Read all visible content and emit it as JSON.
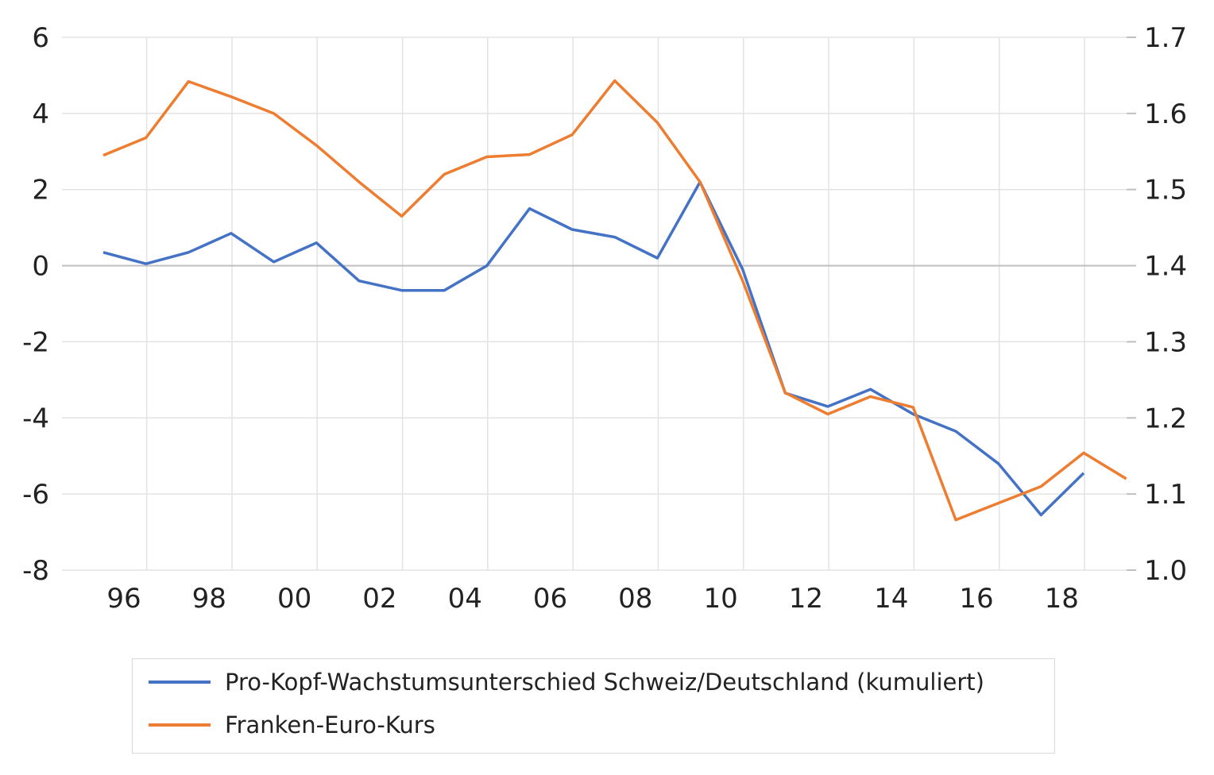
{
  "chart_data": {
    "type": "line",
    "title": "",
    "xlabel": "",
    "ylabel": "",
    "x_tick_labels": [
      "96",
      "98",
      "00",
      "02",
      "04",
      "06",
      "08",
      "10",
      "12",
      "14",
      "16",
      "18"
    ],
    "left_axis": {
      "ylim": [
        -8,
        6
      ],
      "ticks": [
        "6",
        "4",
        "2",
        "0",
        "-2",
        "-4",
        "-6",
        "-8"
      ]
    },
    "right_axis": {
      "ylim": [
        1.0,
        1.7
      ],
      "ticks": [
        "1.7",
        "1.6",
        "1.5",
        "1.4",
        "1.3",
        "1.2",
        "1.1",
        "1.0"
      ]
    },
    "grid": true,
    "legend_position": "bottom",
    "series": [
      {
        "name": "Pro-Kopf-Wachstumsunterschied Schweiz/Deutschland (kumuliert)",
        "axis": "left",
        "color": "#4472C4",
        "x": [
          1995.5,
          1996.5,
          1997.5,
          1998.5,
          1999.5,
          2000.5,
          2001.5,
          2002.5,
          2003.5,
          2004.5,
          2005.5,
          2006.5,
          2007.5,
          2008.5,
          2009.5,
          2010.5,
          2011.5,
          2012.5,
          2013.5,
          2014.5,
          2015.5,
          2016.5,
          2017.5,
          2018.5
        ],
        "values": [
          0.35,
          0.05,
          0.35,
          0.85,
          0.1,
          0.6,
          -0.4,
          -0.65,
          -0.65,
          0.0,
          1.5,
          0.95,
          0.75,
          0.2,
          2.2,
          -0.1,
          -3.35,
          -3.7,
          -3.25,
          -3.9,
          -4.35,
          -5.2,
          -6.55,
          -5.45
        ]
      },
      {
        "name": "Franken-Euro-Kurs",
        "axis": "right",
        "color": "#ED7D31",
        "x": [
          1995.5,
          1996.5,
          1997.5,
          1998.5,
          1999.5,
          2000.5,
          2001.5,
          2002.5,
          2003.5,
          2004.5,
          2005.5,
          2006.5,
          2007.5,
          2008.5,
          2009.5,
          2010.5,
          2011.5,
          2012.5,
          2013.5,
          2014.5,
          2015.5,
          2016.5,
          2017.5,
          2018.5,
          2019.5
        ],
        "values": [
          1.545,
          1.568,
          1.642,
          1.622,
          1.6,
          1.558,
          1.51,
          1.465,
          1.52,
          1.543,
          1.546,
          1.572,
          1.643,
          1.588,
          1.51,
          1.38,
          1.233,
          1.205,
          1.228,
          1.214,
          1.066,
          1.088,
          1.11,
          1.154,
          1.12
        ]
      }
    ]
  }
}
